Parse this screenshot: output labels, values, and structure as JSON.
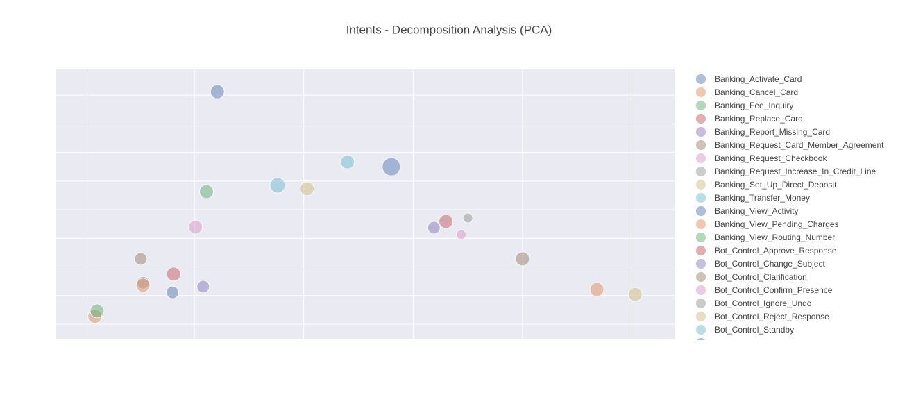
{
  "chart_data": {
    "type": "scatter",
    "title": "Intents - Decomposition Analysis (PCA)",
    "xlim": [
      -2.27,
      3.39
    ],
    "ylim": [
      -4.51,
      4.9
    ],
    "xticks": [
      -2,
      -1,
      0,
      1,
      2,
      3
    ],
    "yticks": [
      -4,
      -3,
      -2,
      -1,
      0,
      1,
      2,
      3,
      4
    ],
    "grid": true,
    "show_tick_labels": false,
    "legend": "right",
    "opacity": 0.45,
    "series": [
      {
        "name": "Banking_Activate_Card",
        "color": "#4c72b0",
        "x": [
          -0.79
        ],
        "values": [
          4.12
        ],
        "sizes": [
          20
        ]
      },
      {
        "name": "Banking_Cancel_Card",
        "color": "#dd8452",
        "x": [
          -1.91
        ],
        "values": [
          -3.73
        ],
        "sizes": [
          20
        ]
      },
      {
        "name": "Banking_Fee_Inquiry",
        "color": "#55a868",
        "x": [
          -1.89
        ],
        "values": [
          -3.54
        ],
        "sizes": [
          20
        ]
      },
      {
        "name": "Banking_Replace_Card",
        "color": "#c44e52",
        "x": [
          -1.19
        ],
        "values": [
          -2.25
        ],
        "sizes": [
          20
        ]
      },
      {
        "name": "Banking_Report_Missing_Card",
        "color": "#8172b3",
        "x": [
          1.19
        ],
        "values": [
          -0.63
        ],
        "sizes": [
          18
        ]
      },
      {
        "name": "Banking_Request_Card_Member_Agreement",
        "color": "#937860",
        "x": [
          -1.49
        ],
        "values": [
          -1.72
        ],
        "sizes": [
          18
        ]
      },
      {
        "name": "Banking_Request_Checkbook",
        "color": "#da8bc3",
        "x": [
          -0.99
        ],
        "values": [
          -0.61
        ],
        "sizes": [
          20
        ]
      },
      {
        "name": "Banking_Request_Increase_In_Credit_Line",
        "color": "#8c8c8c",
        "x": [
          -1.47
        ],
        "values": [
          -2.55
        ],
        "sizes": [
          18
        ]
      },
      {
        "name": "Banking_Set_Up_Direct_Deposit",
        "color": "#ccb974",
        "x": [
          0.03
        ],
        "values": [
          0.73
        ],
        "sizes": [
          20
        ]
      },
      {
        "name": "Banking_Transfer_Money",
        "color": "#64b5cd",
        "x": [
          -0.24
        ],
        "values": [
          0.85
        ],
        "sizes": [
          22
        ]
      },
      {
        "name": "Banking_View_Activity",
        "color": "#4c72b0",
        "x": [
          0.8
        ],
        "values": [
          1.5
        ],
        "sizes": [
          26
        ]
      },
      {
        "name": "Banking_View_Pending_Charges",
        "color": "#dd8452",
        "x": [
          -1.47
        ],
        "values": [
          -2.64
        ],
        "sizes": [
          20
        ]
      },
      {
        "name": "Banking_View_Routing_Number",
        "color": "#55a868",
        "x": [
          -0.89
        ],
        "values": [
          0.63
        ],
        "sizes": [
          20
        ]
      },
      {
        "name": "Bot_Control_Approve_Response",
        "color": "#c44e52",
        "x": [
          1.3
        ],
        "values": [
          -0.41
        ],
        "sizes": [
          20
        ]
      },
      {
        "name": "Bot_Control_Change_Subject",
        "color": "#8172b3",
        "x": [
          -0.92
        ],
        "values": [
          -2.69
        ],
        "sizes": [
          18
        ]
      },
      {
        "name": "Bot_Control_Clarification",
        "color": "#937860",
        "x": [
          2.0
        ],
        "values": [
          -1.72
        ],
        "sizes": [
          20
        ]
      },
      {
        "name": "Bot_Control_Confirm_Presence",
        "color": "#da8bc3",
        "x": [
          1.44
        ],
        "values": [
          -0.87
        ],
        "sizes": [
          14
        ]
      },
      {
        "name": "Bot_Control_Ignore_Undo",
        "color": "#8c8c8c",
        "x": [
          1.5
        ],
        "values": [
          -0.29
        ],
        "sizes": [
          14
        ]
      },
      {
        "name": "Bot_Control_Reject_Response",
        "color": "#ccb974",
        "x": [
          3.03
        ],
        "values": [
          -2.96
        ],
        "sizes": [
          20
        ]
      },
      {
        "name": "Bot_Control_Standby",
        "color": "#64b5cd",
        "x": [
          0.4
        ],
        "values": [
          1.67
        ],
        "sizes": [
          20
        ]
      },
      {
        "name": null,
        "color": "#4c72b0",
        "x": [
          -1.2
        ],
        "values": [
          -2.89
        ],
        "sizes": [
          18
        ]
      },
      {
        "name": null,
        "color": "#dd8452",
        "x": [
          2.68
        ],
        "values": [
          -2.79
        ],
        "sizes": [
          20
        ]
      }
    ]
  }
}
